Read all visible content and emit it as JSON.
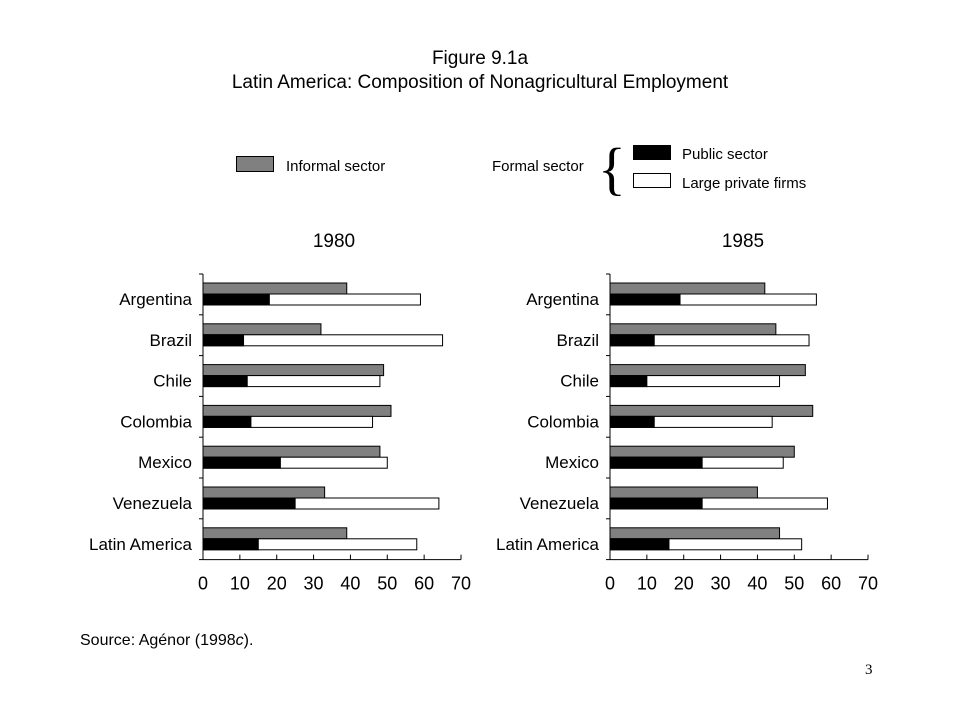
{
  "figure": {
    "title": "Figure 9.1a",
    "subtitle": "Latin America:  Composition of Nonagricultural Employment",
    "source_prefix": "Source: Agénor (1998",
    "source_italic": "c",
    "source_suffix": ").",
    "page_number": "3"
  },
  "legend": {
    "informal_label": "Informal sector",
    "formal_label": "Formal sector",
    "public_label": "Public sector",
    "private_label": "Large private firms",
    "colors": {
      "informal": "#808080",
      "public": "#000000",
      "private": "#ffffff"
    }
  },
  "chart_data": [
    {
      "type": "bar",
      "title": "1980",
      "categories": [
        "Argentina",
        "Brazil",
        "Chile",
        "Colombia",
        "Mexico",
        "Venezuela",
        "Latin America"
      ],
      "series": [
        {
          "name": "Informal sector",
          "values": [
            39,
            32,
            49,
            51,
            48,
            33,
            39
          ]
        },
        {
          "name": "Public sector",
          "values": [
            18,
            11,
            12,
            13,
            21,
            25,
            15
          ]
        },
        {
          "name": "Large private firms",
          "values": [
            59,
            65,
            48,
            46,
            50,
            64,
            58
          ]
        }
      ],
      "xlim": [
        0,
        70
      ],
      "xticks": [
        "0",
        "10",
        "20",
        "30",
        "40",
        "50",
        "60",
        "70"
      ]
    },
    {
      "type": "bar",
      "title": "1985",
      "categories": [
        "Argentina",
        "Brazil",
        "Chile",
        "Colombia",
        "Mexico",
        "Venezuela",
        "Latin America"
      ],
      "series": [
        {
          "name": "Informal sector",
          "values": [
            42,
            45,
            53,
            55,
            50,
            40,
            46
          ]
        },
        {
          "name": "Public sector",
          "values": [
            19,
            12,
            10,
            12,
            25,
            25,
            16
          ]
        },
        {
          "name": "Large private firms",
          "values": [
            56,
            54,
            46,
            44,
            47,
            59,
            52
          ]
        }
      ],
      "xlim": [
        0,
        70
      ],
      "xticks": [
        "0",
        "10",
        "20",
        "30",
        "40",
        "50",
        "60",
        "70"
      ]
    }
  ]
}
